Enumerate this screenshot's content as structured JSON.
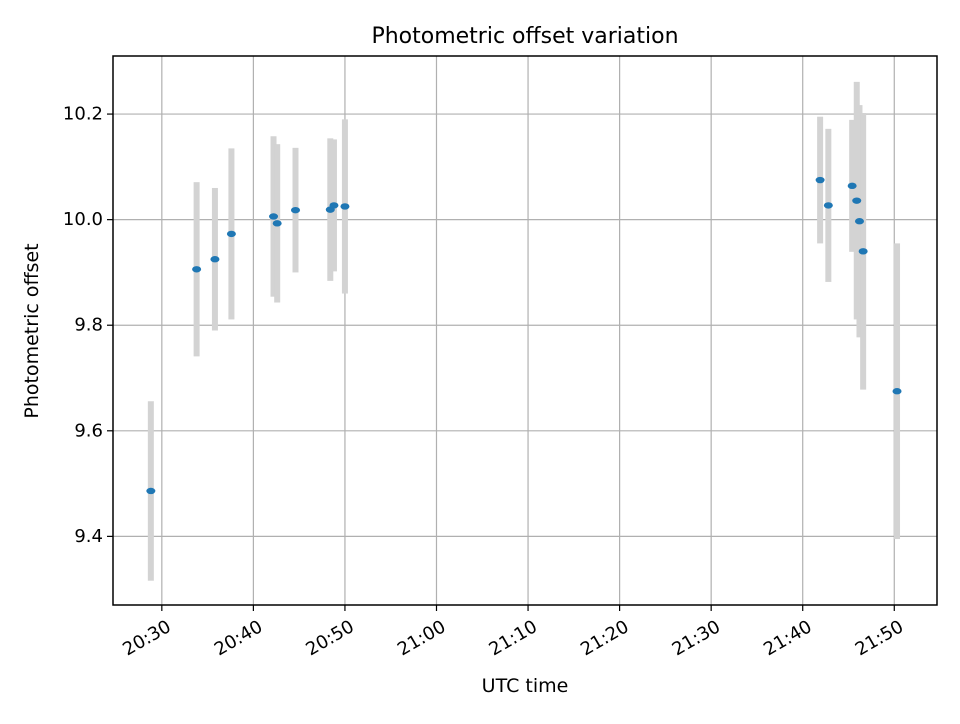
{
  "chart_data": {
    "type": "scatter",
    "title": "Photometric offset variation",
    "xlabel": "UTC time",
    "ylabel": "Photometric offset",
    "xlim": [
      "20:24:40",
      "21:54:40"
    ],
    "ylim": [
      9.27,
      10.31
    ],
    "grid": true,
    "x_ticks": [
      "20:30",
      "20:40",
      "20:50",
      "21:00",
      "21:10",
      "21:20",
      "21:30",
      "21:40",
      "21:50"
    ],
    "y_ticks": [
      "9.4",
      "9.6",
      "9.8",
      "10.0",
      "10.2"
    ],
    "marker_color": "#1f77b4",
    "errorbar_color": "#d3d3d3",
    "points": [
      {
        "time": "20:28:48",
        "y": 9.486,
        "yerr": 0.17
      },
      {
        "time": "20:33:48",
        "y": 9.906,
        "yerr": 0.165
      },
      {
        "time": "20:35:48",
        "y": 9.925,
        "yerr": 0.135
      },
      {
        "time": "20:37:36",
        "y": 9.973,
        "yerr": 0.162
      },
      {
        "time": "20:42:12",
        "y": 10.006,
        "yerr": 0.152
      },
      {
        "time": "20:42:36",
        "y": 9.993,
        "yerr": 0.15
      },
      {
        "time": "20:44:36",
        "y": 10.018,
        "yerr": 0.118
      },
      {
        "time": "20:48:24",
        "y": 10.019,
        "yerr": 0.135
      },
      {
        "time": "20:48:48",
        "y": 10.027,
        "yerr": 0.125
      },
      {
        "time": "20:50:00",
        "y": 10.025,
        "yerr": 0.165
      },
      {
        "time": "21:41:54",
        "y": 10.075,
        "yerr": 0.12
      },
      {
        "time": "21:42:48",
        "y": 10.027,
        "yerr": 0.145
      },
      {
        "time": "21:45:24",
        "y": 10.064,
        "yerr": 0.125
      },
      {
        "time": "21:45:54",
        "y": 10.036,
        "yerr": 0.225
      },
      {
        "time": "21:46:12",
        "y": 9.997,
        "yerr": 0.22
      },
      {
        "time": "21:46:36",
        "y": 9.94,
        "yerr": 0.262
      },
      {
        "time": "21:50:18",
        "y": 9.675,
        "yerr": 0.28
      }
    ]
  }
}
